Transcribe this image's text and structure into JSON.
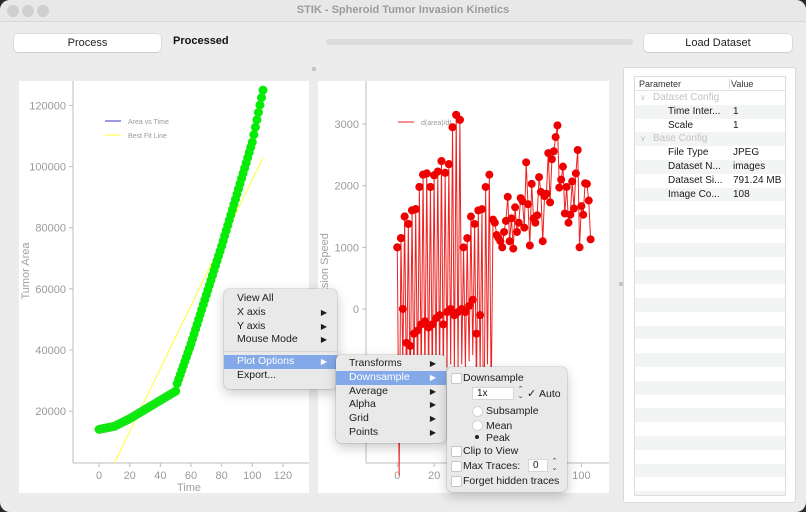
{
  "window": {
    "title": "STIK - Spheroid Tumor Invasion Kinetics"
  },
  "toolbar": {
    "process_label": "Process",
    "status_text": "Processed",
    "load_label": "Load Dataset",
    "progress_percent": 0
  },
  "params": {
    "headers": [
      "Parameter",
      "Value"
    ],
    "groups": [
      {
        "label": "Dataset Config",
        "rows": [
          {
            "key": "Time Inter...",
            "value": "1"
          },
          {
            "key": "Scale",
            "value": "1"
          }
        ]
      },
      {
        "label": "Base Config",
        "rows": [
          {
            "key": "File Type",
            "value": "JPEG"
          },
          {
            "key": "Dataset N...",
            "value": "images"
          },
          {
            "key": "Dataset Si...",
            "value": "791.24 MB"
          },
          {
            "key": "Image Co...",
            "value": "108"
          }
        ]
      }
    ]
  },
  "context_menu": {
    "items": [
      {
        "label": "View All",
        "submenu": false
      },
      {
        "label": "X axis",
        "submenu": true
      },
      {
        "label": "Y axis",
        "submenu": true
      },
      {
        "label": "Mouse Mode",
        "submenu": true
      },
      {
        "label": "Plot Options",
        "submenu": true,
        "highlighted": true
      },
      {
        "label": "Export...",
        "submenu": false
      }
    ],
    "plot_options": [
      {
        "label": "Transforms",
        "submenu": true
      },
      {
        "label": "Downsample",
        "submenu": true,
        "highlighted": true
      },
      {
        "label": "Average",
        "submenu": true
      },
      {
        "label": "Alpha",
        "submenu": true
      },
      {
        "label": "Grid",
        "submenu": true
      },
      {
        "label": "Points",
        "submenu": true
      }
    ],
    "downsample": {
      "downsample_label": "Downsample",
      "downsample_checked": false,
      "factor_value": "1x",
      "auto_label": "Auto",
      "auto_checked": true,
      "method_options": [
        "Subsample",
        "Mean",
        "Peak"
      ],
      "method_selected": "Peak",
      "clip_label": "Clip to View",
      "clip_checked": false,
      "max_traces_label": "Max Traces:",
      "max_traces_value": "0",
      "max_traces_checked": false,
      "forget_label": "Forget hidden traces",
      "forget_checked": false
    }
  },
  "chart_data": [
    {
      "type": "scatter",
      "title": "",
      "xlabel": "Time",
      "ylabel": "Tumor Area",
      "xlim": [
        -17,
        137
      ],
      "ylim": [
        3000,
        128000
      ],
      "xticks": [
        0,
        20,
        40,
        60,
        80,
        100,
        120
      ],
      "yticks": [
        20000,
        40000,
        60000,
        80000,
        100000,
        120000
      ],
      "legend": [
        {
          "name": "Area vs Time",
          "color": "#3333cc"
        },
        {
          "name": "Best Fit Line",
          "color": "#ffff33"
        }
      ],
      "series": [
        {
          "name": "Area vs Time",
          "marker_color": "#00ee00",
          "x_range": [
            0,
            107
          ],
          "description": "slow rise 14000→26000 over t=0–50, then steep rise to ~125000 at t=107",
          "key_points": [
            [
              0,
              14000
            ],
            [
              10,
              15000
            ],
            [
              20,
              17500
            ],
            [
              30,
              20500
            ],
            [
              40,
              23500
            ],
            [
              50,
              26500
            ],
            [
              51,
              29000
            ],
            [
              60,
              42000
            ],
            [
              70,
              58000
            ],
            [
              80,
              74000
            ],
            [
              90,
              91000
            ],
            [
              100,
              108000
            ],
            [
              107,
              125000
            ]
          ]
        },
        {
          "name": "Best Fit Line",
          "color": "#ffff33",
          "x": [
            10,
            107
          ],
          "y": [
            3000,
            103000
          ]
        }
      ]
    },
    {
      "type": "line",
      "title": "",
      "xlabel": "",
      "ylabel": "Invasion Speed",
      "xlim": [
        -17,
        115
      ],
      "ylim": [
        -2500,
        3700
      ],
      "xticks": [
        0,
        20,
        40,
        60,
        80,
        100
      ],
      "yticks": [
        0,
        1000,
        2000,
        3000
      ],
      "legend": [
        {
          "name": "d(area)/dt",
          "color": "#ee2222"
        }
      ],
      "series": [
        {
          "name": "d(area)/dt",
          "marker_color": "#ee0000",
          "description": "alternating high/low values for t=0–51, then noisy 1000–3000 for t=52–107",
          "high_points": [
            [
              0,
              1000
            ],
            [
              2,
              1150
            ],
            [
              4,
              1500
            ],
            [
              6,
              1380
            ],
            [
              8,
              1600
            ],
            [
              10,
              1620
            ],
            [
              12,
              1980
            ],
            [
              14,
              2180
            ],
            [
              16,
              2200
            ],
            [
              18,
              1980
            ],
            [
              20,
              2170
            ],
            [
              22,
              2230
            ],
            [
              24,
              2400
            ],
            [
              26,
              2210
            ],
            [
              28,
              2350
            ],
            [
              30,
              2950
            ],
            [
              32,
              3150
            ],
            [
              34,
              3070
            ]
          ],
          "low_points": [
            [
              1,
              -1800
            ],
            [
              3,
              0
            ],
            [
              5,
              -550
            ],
            [
              7,
              -600
            ],
            [
              9,
              -400
            ],
            [
              11,
              -350
            ],
            [
              13,
              -250
            ],
            [
              15,
              -200
            ],
            [
              17,
              -300
            ],
            [
              19,
              -250
            ],
            [
              21,
              -150
            ],
            [
              23,
              -100
            ],
            [
              25,
              -250
            ],
            [
              27,
              -50
            ],
            [
              29,
              0
            ],
            [
              31,
              -100
            ],
            [
              33,
              -50
            ],
            [
              35,
              0
            ],
            [
              37,
              -50
            ],
            [
              39,
              50
            ],
            [
              41,
              150
            ],
            [
              43,
              -400
            ],
            [
              45,
              -100
            ]
          ],
          "tail_points": [
            [
              52,
              1450
            ],
            [
              53,
              1400
            ],
            [
              54,
              1200
            ],
            [
              55,
              1150
            ],
            [
              56,
              1100
            ],
            [
              57,
              1000
            ],
            [
              58,
              1250
            ],
            [
              59,
              1430
            ],
            [
              60,
              1820
            ],
            [
              61,
              1100
            ],
            [
              62,
              1470
            ],
            [
              63,
              980
            ],
            [
              64,
              1650
            ],
            [
              65,
              1250
            ],
            [
              66,
              1400
            ],
            [
              67,
              1800
            ],
            [
              68,
              1750
            ],
            [
              69,
              1320
            ],
            [
              70,
              2380
            ],
            [
              71,
              1700
            ],
            [
              72,
              1030
            ],
            [
              73,
              2030
            ],
            [
              74,
              1470
            ],
            [
              75,
              1400
            ],
            [
              76,
              1520
            ],
            [
              77,
              2140
            ],
            [
              78,
              1900
            ],
            [
              79,
              1100
            ],
            [
              80,
              1830
            ],
            [
              81,
              1870
            ],
            [
              82,
              2530
            ],
            [
              83,
              1730
            ],
            [
              84,
              2430
            ],
            [
              85,
              2560
            ],
            [
              86,
              2790
            ],
            [
              87,
              2980
            ],
            [
              88,
              1970
            ],
            [
              89,
              2100
            ],
            [
              90,
              2310
            ],
            [
              91,
              1550
            ],
            [
              92,
              1980
            ],
            [
              93,
              1400
            ],
            [
              94,
              1530
            ],
            [
              95,
              2070
            ],
            [
              96,
              1630
            ],
            [
              97,
              2200
            ],
            [
              98,
              2580
            ],
            [
              99,
              1000
            ],
            [
              100,
              1670
            ],
            [
              101,
              1530
            ],
            [
              102,
              2040
            ],
            [
              103,
              2030
            ],
            [
              104,
              1760
            ],
            [
              105,
              1130
            ]
          ]
        }
      ]
    }
  ]
}
